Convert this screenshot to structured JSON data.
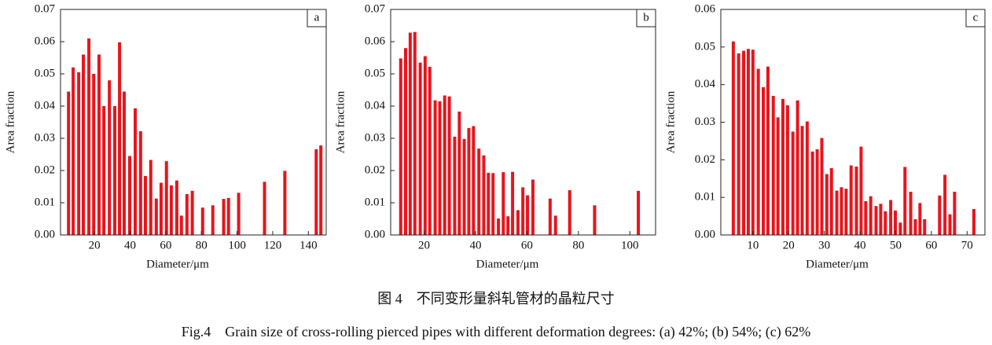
{
  "figure": {
    "caption_cn": "图 4　不同变形量斜轧管材的晶粒尺寸",
    "caption_en": "Fig.4　Grain size of cross-rolling pierced pipes with different deformation degrees: (a) 42%; (b) 54%; (c) 62%"
  },
  "chart_data": [
    {
      "type": "bar",
      "panel_label": "a",
      "x_label": "Diameter/μm",
      "y_label": "Area fraction",
      "color": "#e8141c",
      "xlim": [
        1,
        150
      ],
      "xticks": [
        20,
        40,
        60,
        80,
        100,
        120,
        140
      ],
      "ylim": [
        0,
        0.07
      ],
      "yticks": [
        {
          "value": 0,
          "label": "0.00"
        },
        {
          "value": 0.01,
          "label": "0.01"
        },
        {
          "value": 0.02,
          "label": "0.02"
        },
        {
          "value": 0.03,
          "label": "0.03"
        },
        {
          "value": 0.04,
          "label": "0.04"
        },
        {
          "value": 0.05,
          "label": "0.05"
        },
        {
          "value": 0.06,
          "label": "0.06"
        },
        {
          "value": 0.07,
          "label": "0.07"
        }
      ],
      "x": [
        5.5,
        8.1,
        11.2,
        13.8,
        16.9,
        19.6,
        22.6,
        25.3,
        28.4,
        31.4,
        34.1,
        36.7,
        39.8,
        42.9,
        45.9,
        48.6,
        51.6,
        54.7,
        57.4,
        60.4,
        63.1,
        66.2,
        68.8,
        71.9,
        74.9,
        80.7,
        86.4,
        92.5,
        95.2,
        100.9,
        115.4,
        126.8,
        144.4,
        147.0
      ],
      "values": [
        0.0445,
        0.052,
        0.0505,
        0.056,
        0.061,
        0.05,
        0.056,
        0.04,
        0.048,
        0.04,
        0.0598,
        0.0445,
        0.0245,
        0.0393,
        0.0322,
        0.0183,
        0.0233,
        0.0113,
        0.0162,
        0.0229,
        0.0154,
        0.0169,
        0.006,
        0.0127,
        0.0137,
        0.0085,
        0.0092,
        0.0112,
        0.0115,
        0.0131,
        0.0165,
        0.0199,
        0.0266,
        0.0278
      ]
    },
    {
      "type": "bar",
      "panel_label": "b",
      "x_label": "Diameter/μm",
      "y_label": "Area fraction",
      "color": "#e8141c",
      "xlim": [
        7,
        110
      ],
      "xticks": [
        20,
        40,
        60,
        80,
        100
      ],
      "ylim": [
        0,
        0.07
      ],
      "yticks": [
        {
          "value": 0,
          "label": "0.00"
        },
        {
          "value": 0.01,
          "label": "0.01"
        },
        {
          "value": 0.02,
          "label": "0.02"
        },
        {
          "value": 0.03,
          "label": "0.03"
        },
        {
          "value": 0.04,
          "label": "0.04"
        },
        {
          "value": 0.05,
          "label": "0.05"
        },
        {
          "value": 0.06,
          "label": "0.06"
        },
        {
          "value": 0.07,
          "label": "0.07"
        }
      ],
      "x": [
        10.9,
        12.8,
        14.6,
        16.4,
        18.5,
        20.4,
        22.2,
        24.3,
        26.1,
        28.0,
        29.8,
        31.9,
        33.7,
        35.6,
        37.4,
        39.2,
        41.3,
        43.2,
        45.0,
        46.8,
        48.9,
        50.8,
        52.6,
        54.4,
        56.5,
        58.4,
        60.2,
        62.3,
        69.0,
        71.1,
        76.6,
        86.3,
        103.3
      ],
      "values": [
        0.0548,
        0.058,
        0.0628,
        0.063,
        0.0535,
        0.0555,
        0.0522,
        0.0418,
        0.0415,
        0.0433,
        0.043,
        0.0305,
        0.0383,
        0.0298,
        0.0332,
        0.0338,
        0.0268,
        0.0247,
        0.0193,
        0.0192,
        0.0051,
        0.0195,
        0.0058,
        0.0196,
        0.0077,
        0.0148,
        0.0123,
        0.0172,
        0.0113,
        0.006,
        0.0139,
        0.0092,
        0.0137
      ]
    },
    {
      "type": "bar",
      "panel_label": "c",
      "x_label": "Diameter/μm",
      "y_label": "Area fraction",
      "color": "#e8141c",
      "xlim": [
        1,
        75
      ],
      "xticks": [
        10,
        20,
        30,
        40,
        50,
        60,
        70
      ],
      "ylim": [
        0,
        0.06
      ],
      "yticks": [
        {
          "value": 0,
          "label": "0.00"
        },
        {
          "value": 0.01,
          "label": "0.01"
        },
        {
          "value": 0.02,
          "label": "0.02"
        },
        {
          "value": 0.03,
          "label": "0.03"
        },
        {
          "value": 0.04,
          "label": "0.04"
        },
        {
          "value": 0.05,
          "label": "0.05"
        },
        {
          "value": 0.06,
          "label": "0.06"
        }
      ],
      "x": [
        4.5,
        6.0,
        7.4,
        8.7,
        10.0,
        11.5,
        12.9,
        14.2,
        15.7,
        17.0,
        18.4,
        19.7,
        21.2,
        22.5,
        23.8,
        25.2,
        26.7,
        28.0,
        29.3,
        30.7,
        32.0,
        33.5,
        34.8,
        36.1,
        37.5,
        39.0,
        40.3,
        41.6,
        43.0,
        44.5,
        45.8,
        47.1,
        48.6,
        49.9,
        51.3,
        52.6,
        54.2,
        55.5,
        56.8,
        58.1,
        62.3,
        63.8,
        65.2,
        66.5,
        71.9
      ],
      "values": [
        0.0515,
        0.0483,
        0.049,
        0.0495,
        0.0493,
        0.0442,
        0.0393,
        0.0448,
        0.037,
        0.0313,
        0.0362,
        0.0345,
        0.0275,
        0.0358,
        0.029,
        0.0302,
        0.0222,
        0.0228,
        0.0258,
        0.0162,
        0.0178,
        0.0118,
        0.0127,
        0.0123,
        0.0185,
        0.0182,
        0.0235,
        0.009,
        0.0103,
        0.0077,
        0.0083,
        0.0063,
        0.0093,
        0.0065,
        0.0033,
        0.0181,
        0.0115,
        0.0042,
        0.0085,
        0.0042,
        0.0105,
        0.016,
        0.0055,
        0.0115,
        0.0069
      ]
    }
  ]
}
